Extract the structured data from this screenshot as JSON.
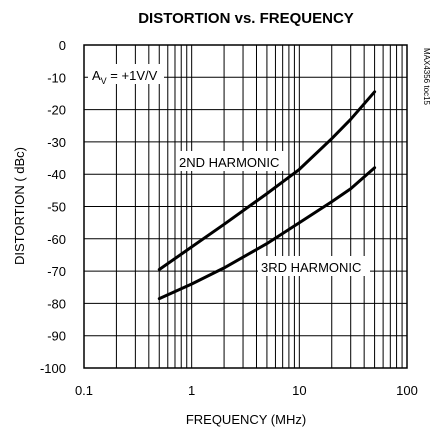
{
  "chart_data": {
    "type": "line",
    "title": "DISTORTION vs. FREQUENCY",
    "xlabel": "FREQUENCY (MHz)",
    "ylabel": "DISTORTION ( dBc)",
    "x_scale": "log",
    "xlim": [
      0.1,
      100
    ],
    "ylim": [
      -100,
      0
    ],
    "x_ticks": [
      0.1,
      1,
      10,
      100
    ],
    "x_tick_labels": [
      "0.1",
      "1",
      "10",
      "100"
    ],
    "y_ticks": [
      0,
      -10,
      -20,
      -30,
      -40,
      -50,
      -60,
      -70,
      -80,
      -90,
      -100
    ],
    "y_tick_labels": [
      "0",
      "-10",
      "-20",
      "-30",
      "-40",
      "-50",
      "-60",
      "-70",
      "-80",
      "-90",
      "-100"
    ],
    "grid": true,
    "condition_label": {
      "main": "A",
      "sub": "V",
      "rest": " = +1V/V"
    },
    "code_label": "MAX4356 toc15",
    "series": [
      {
        "name": "2ND HARMONIC",
        "x": [
          0.5,
          1,
          2,
          5,
          10,
          20,
          30,
          50
        ],
        "y": [
          -69.5,
          -62.5,
          -55.5,
          -46,
          -38.5,
          -29,
          -23,
          -14.5
        ]
      },
      {
        "name": "3RD HARMONIC",
        "x": [
          0.5,
          1,
          2,
          5,
          10,
          20,
          30,
          50
        ],
        "y": [
          -78.5,
          -74,
          -69,
          -61.5,
          -55,
          -48.5,
          -44.5,
          -38
        ]
      }
    ],
    "color": "#000000"
  }
}
